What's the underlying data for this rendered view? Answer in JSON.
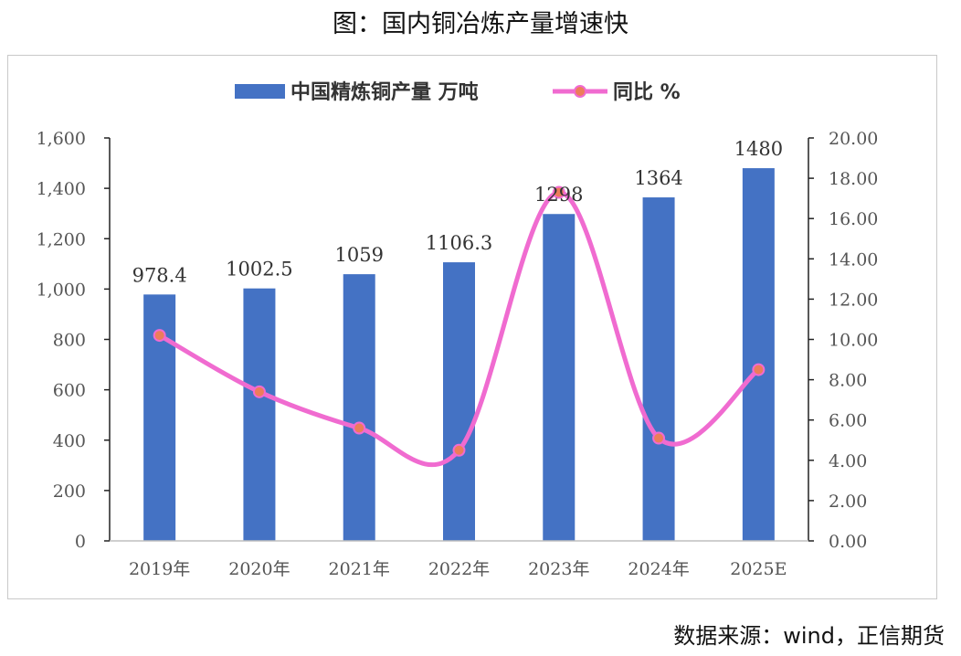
{
  "title": "图：国内铜冶炼产量增速快",
  "source": "数据来源：wind，正信期货",
  "colors": {
    "bar": "#4472C4",
    "line": "#F06BD0",
    "marker": "#ED7D5A"
  },
  "chart_data": {
    "type": "bar+line",
    "categories": [
      "2019年",
      "2020年",
      "2021年",
      "2022年",
      "2023年",
      "2024年",
      "2025E"
    ],
    "series": [
      {
        "name": "中国精炼铜产量 万吨",
        "type": "bar",
        "axis": "left",
        "values": [
          978.4,
          1002.5,
          1059,
          1106.3,
          1298,
          1364,
          1480
        ],
        "labels": [
          "978.4",
          "1002.5",
          "1059",
          "1106.3",
          "1298",
          "1364",
          "1480"
        ]
      },
      {
        "name": "同比 %",
        "type": "line",
        "axis": "right",
        "values": [
          10.2,
          7.4,
          5.6,
          4.5,
          17.3,
          5.1,
          8.5
        ]
      }
    ],
    "y_left": {
      "min": 0,
      "max": 1600,
      "ticks": [
        "0",
        "200",
        "400",
        "600",
        "800",
        "1,000",
        "1,200",
        "1,400",
        "1,600"
      ]
    },
    "y_right": {
      "min": 0,
      "max": 20,
      "ticks": [
        "0.00",
        "2.00",
        "4.00",
        "6.00",
        "8.00",
        "10.00",
        "12.00",
        "14.00",
        "16.00",
        "18.00",
        "20.00"
      ]
    },
    "legend": "top",
    "grid": false
  }
}
